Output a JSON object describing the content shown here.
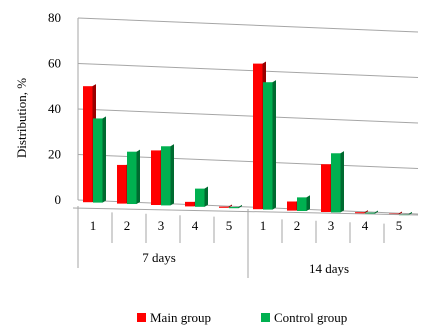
{
  "chart_data": {
    "type": "bar",
    "ylabel": "Distribution,  %",
    "ylim": [
      0,
      80
    ],
    "yticks": [
      "0",
      "20",
      "40",
      "60",
      "80"
    ],
    "grid": true,
    "legend_position": "bottom",
    "groups": [
      {
        "label": "7 days",
        "categories": [
          "1",
          "2",
          "3",
          "4",
          "5"
        ]
      },
      {
        "label": "14 days",
        "categories": [
          "1",
          "2",
          "3",
          "4",
          "5"
        ]
      }
    ],
    "series": [
      {
        "name": "Main group",
        "color": "#ff0000",
        "values": [
          51,
          17,
          24,
          2,
          0,
          64,
          4,
          21,
          0,
          0
        ]
      },
      {
        "name": "Control group",
        "color": "#00b050",
        "values": [
          37,
          23,
          26,
          8,
          0,
          56,
          6,
          26,
          0,
          0
        ]
      }
    ]
  }
}
